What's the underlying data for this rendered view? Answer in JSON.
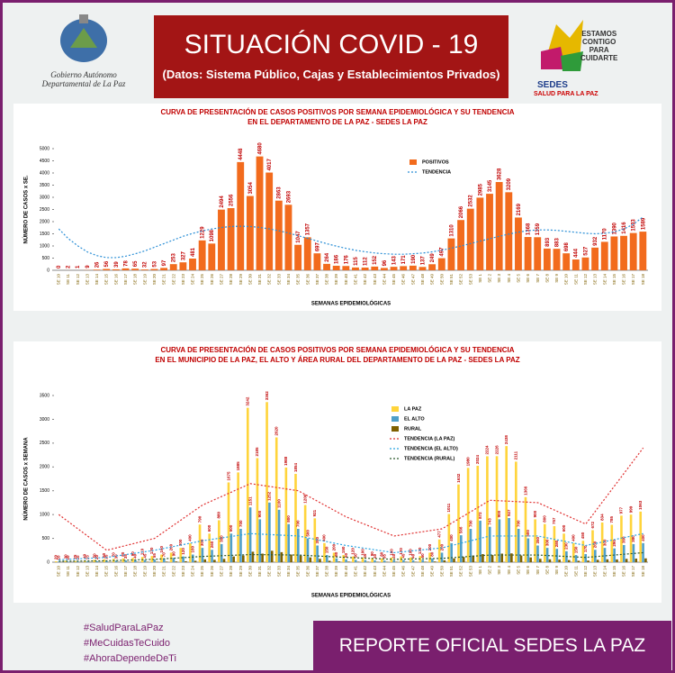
{
  "header": {
    "org": "Gobierno Autónomo Departamental de La Paz",
    "title": "SITUACIÓN  COVID - 19",
    "subtitle": "(Datos: Sistema Público, Cajas y Establecimientos Privados)",
    "slogan": [
      "ESTAMOS",
      "CONTIGO",
      "PARA",
      "CUIDARTE"
    ],
    "brand": "SEDES",
    "brand_sub": "SALUD PARA LA PAZ"
  },
  "footer": {
    "hashtags": [
      "#SaludParaLaPaz",
      "#MeCuidasTeCuido",
      "#AhoraDependeDeTi"
    ],
    "banner": "REPORTE OFICIAL SEDES LA PAZ"
  },
  "chart_data": [
    {
      "type": "bar",
      "title": [
        "CURVA DE PRESENTACIÓN DE CASOS POSITIVOS POR SEMANA EPIDEMIOLÓGICA Y SU TENDENCIA",
        "EN EL DEPARTAMENTO DE LA PAZ - SEDES LA PAZ"
      ],
      "x_label": "SEMANAS EPIDEMIOLÓGICAS",
      "y_label": "NÚMERO DE CASOS x SE.",
      "categories": [
        "SE 10",
        "SE 11",
        "SE 12",
        "SE 13",
        "SE 14",
        "SE 15",
        "SE 16",
        "SE 17",
        "SE 18",
        "SE 19",
        "SE 20",
        "SE 21",
        "SE 22",
        "SE 23",
        "SE 24",
        "SE 25",
        "SE 26",
        "SE 27",
        "SE 28",
        "SE 29",
        "SE 30",
        "SE 31",
        "SE 32",
        "SE 33",
        "SE 34",
        "SE 35",
        "SE 36",
        "SE 37",
        "SE 38",
        "SE 39",
        "SE 40",
        "SE 41",
        "SE 42",
        "SE 43",
        "SE 44",
        "SE 45",
        "SE 46",
        "SE 47",
        "SE 48",
        "SE 49",
        "SE 50",
        "SE 51",
        "SE 52",
        "SE 53",
        "SE 1",
        "SE 2",
        "SE 3",
        "SE 4",
        "SE 5",
        "SE 6",
        "SE 7",
        "SE 8",
        "SE 9",
        "SE 10",
        "SE 11",
        "SE 12",
        "SE 13",
        "SE 14",
        "SE 15",
        "SE 16",
        "SE 17",
        "SE 18"
      ],
      "ylim": [
        0,
        5000
      ],
      "yticks": [
        0,
        500,
        1000,
        1500,
        2000,
        2500,
        3000,
        3500,
        4000,
        4500,
        5000
      ],
      "series": [
        {
          "name": "POSITIVOS",
          "kind": "bar",
          "color": "#f26b1d",
          "labels": true,
          "values": [
            0,
            2,
            1,
            9,
            26,
            56,
            39,
            78,
            65,
            32,
            53,
            97,
            253,
            327,
            481,
            1229,
            1098,
            2494,
            2556,
            4448,
            3054,
            4680,
            4017,
            2863,
            2693,
            1047,
            1357,
            697,
            264,
            186,
            176,
            115,
            112,
            152,
            96,
            143,
            171,
            190,
            137,
            249,
            497,
            1310,
            2066,
            2532,
            2985,
            3145,
            3628,
            3209,
            2169,
            1368,
            1359,
            893,
            883,
            698,
            444,
            527,
            932,
            1170,
            1390,
            1416,
            1533,
            1589
          ]
        },
        {
          "name": "TENDENCIA",
          "kind": "line",
          "color": "#2b8fd6",
          "values": [
            1700,
            1300,
            1000,
            750,
            600,
            520,
            520,
            580,
            680,
            800,
            950,
            1100,
            1250,
            1400,
            1520,
            1620,
            1700,
            1760,
            1800,
            1810,
            1800,
            1760,
            1700,
            1620,
            1530,
            1420,
            1310,
            1200,
            1090,
            990,
            900,
            820,
            760,
            710,
            680,
            660,
            660,
            680,
            710,
            760,
            830,
            910,
            1000,
            1100,
            1200,
            1300,
            1400,
            1490,
            1570,
            1630,
            1660,
            1660,
            1640,
            1600,
            1560,
            1520,
            1500,
            1520,
            1580,
            1700,
            1900,
            2200
          ]
        }
      ]
    },
    {
      "type": "bar",
      "title": [
        "CURVA DE PRESENTACIÓN DE CASOS POSITIVOS POR SEMANA EPIDEMIOLÓGICA Y SU TENDENCIA",
        "EN EL  MUNICIPIO DE LA PAZ, EL ALTO Y ÁREA RURAL DEL DEPARTAMENTO DE LA PAZ - SEDES LA PAZ"
      ],
      "x_label": "SEMANAS EPIDEMIOLÓGICAS",
      "y_label": "NÚMERO DE CASOS x SEMANA",
      "categories": [
        "SE 10",
        "SE 11",
        "SE 12",
        "SE 13",
        "SE 14",
        "SE 15",
        "SE 16",
        "SE 17",
        "SE 18",
        "SE 19",
        "SE 20",
        "SE 21",
        "SE 22",
        "SE 23",
        "SE 24",
        "SE 25",
        "SE 26",
        "SE 27",
        "SE 28",
        "SE 29",
        "SE 30",
        "SE 31",
        "SE 32",
        "SE 33",
        "SE 34",
        "SE 35",
        "SE 36",
        "SE 37",
        "SE 38",
        "SE 39",
        "SE 40",
        "SE 41",
        "SE 42",
        "SE 43",
        "SE 44",
        "SE 45",
        "SE 46",
        "SE 47",
        "SE 48",
        "SE 49",
        "SE 50",
        "SE 51",
        "SE 52",
        "SE 53",
        "SE 1",
        "SE 2",
        "SE 3",
        "SE 4",
        "SE 5",
        "SE 6",
        "SE 7",
        "SE 8",
        "SE 9",
        "SE 10",
        "SE 11",
        "SE 12",
        "SE 13",
        "SE 14",
        "SE 15",
        "SE 16",
        "SE 17",
        "SE 18"
      ],
      "ylim": [
        0,
        3500
      ],
      "yticks": [
        0,
        500,
        1000,
        1500,
        2000,
        2500,
        3000,
        3500
      ],
      "series": [
        {
          "name": "LA PAZ",
          "kind": "bar",
          "color": "#ffd43b",
          "labels": true,
          "values": [
            20,
            30,
            25,
            40,
            50,
            60,
            70,
            80,
            90,
            110,
            130,
            160,
            200,
            300,
            400,
            790,
            600,
            880,
            1675,
            1885,
            3242,
            2185,
            3362,
            2620,
            1988,
            1854,
            1200,
            921,
            400,
            200,
            150,
            120,
            100,
            90,
            80,
            100,
            120,
            100,
            130,
            200,
            477,
            1011,
            1632,
            1980,
            2024,
            2224,
            2226,
            2438,
            2111,
            1366,
            900,
            800,
            757,
            600,
            400,
            450,
            672,
            834,
            785,
            977,
            999,
            1063
          ]
        },
        {
          "name": "EL ALTO",
          "kind": "bar",
          "color": "#4f9fc9",
          "labels": true,
          "values": [
            10,
            10,
            10,
            15,
            20,
            25,
            30,
            35,
            40,
            45,
            55,
            70,
            90,
            120,
            160,
            300,
            260,
            380,
            600,
            700,
            1151,
            900,
            1252,
            1100,
            800,
            700,
            500,
            350,
            150,
            80,
            60,
            50,
            45,
            40,
            35,
            40,
            45,
            40,
            50,
            80,
            200,
            400,
            566,
            700,
            872,
            743,
            900,
            927,
            700,
            500,
            350,
            300,
            280,
            230,
            150,
            170,
            260,
            300,
            290,
            360,
            380,
            400
          ]
        },
        {
          "name": "RURAL",
          "kind": "bar",
          "color": "#7f6000",
          "labels": false,
          "values": [
            2,
            2,
            2,
            3,
            4,
            5,
            6,
            7,
            8,
            9,
            10,
            12,
            15,
            20,
            30,
            60,
            50,
            70,
            120,
            140,
            220,
            180,
            240,
            210,
            160,
            140,
            100,
            70,
            30,
            15,
            12,
            10,
            9,
            8,
            7,
            8,
            9,
            8,
            10,
            15,
            40,
            80,
            110,
            140,
            170,
            150,
            180,
            185,
            140,
            100,
            70,
            60,
            55,
            45,
            30,
            35,
            50,
            60,
            58,
            70,
            75,
            80
          ]
        },
        {
          "name": "TENDENCIA (LA PAZ)",
          "kind": "line",
          "color": "#e03030",
          "x": [
            0,
            5,
            10,
            15,
            20,
            25,
            30,
            35,
            40,
            45,
            50,
            55,
            61
          ],
          "values": [
            1000,
            250,
            500,
            1200,
            1650,
            1500,
            950,
            550,
            700,
            1300,
            1250,
            800,
            2400
          ]
        },
        {
          "name": "TENDENCIA (EL ALTO)",
          "kind": "line",
          "color": "#2aa3e0",
          "x": [
            0,
            5,
            10,
            15,
            20,
            25,
            30,
            35,
            40,
            45,
            50,
            55,
            61
          ],
          "values": [
            50,
            100,
            250,
            450,
            600,
            550,
            350,
            200,
            300,
            550,
            550,
            350,
            600
          ]
        },
        {
          "name": "TENDENCIA (RURAL)",
          "kind": "line",
          "color": "#2e5a2e",
          "x": [
            0,
            5,
            10,
            15,
            20,
            25,
            30,
            35,
            40,
            45,
            50,
            55,
            61
          ],
          "values": [
            20,
            30,
            60,
            120,
            160,
            150,
            100,
            60,
            80,
            150,
            150,
            100,
            200
          ]
        }
      ]
    }
  ]
}
